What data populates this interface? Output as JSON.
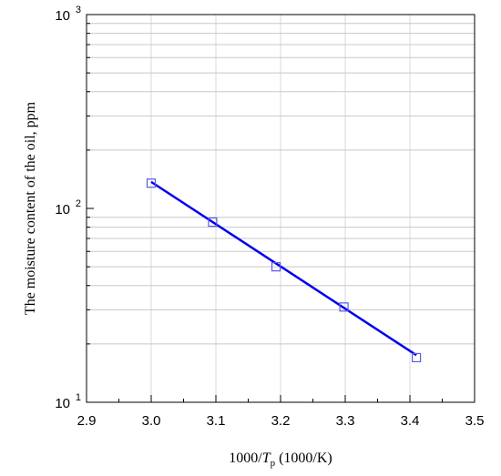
{
  "chart_data": {
    "type": "line",
    "title": "",
    "xlabel": {
      "prefix": "1000/",
      "var": "T",
      "sub": "p",
      "suffix": " (1000/K)"
    },
    "ylabel": "The moisture content of the oil, ppm",
    "xlim": [
      2.9,
      3.5
    ],
    "ylim": [
      10,
      1000
    ],
    "yscale": "log",
    "grid": true,
    "xticks": [
      2.9,
      3.0,
      3.1,
      3.2,
      3.3,
      3.4,
      3.5
    ],
    "xtick_labels": [
      "2.9",
      "3.0",
      "3.1",
      "3.2",
      "3.3",
      "3.4",
      "3.5"
    ],
    "yticks": [
      {
        "value": 10,
        "base": "10",
        "exp": "1"
      },
      {
        "value": 100,
        "base": "10",
        "exp": "2"
      },
      {
        "value": 1000,
        "base": "10",
        "exp": "3"
      }
    ],
    "series": [
      {
        "type": "scatter",
        "marker": "square",
        "color": "#5a5ae6",
        "x": [
          3.0,
          3.095,
          3.193,
          3.298,
          3.41
        ],
        "y": [
          135,
          85,
          50,
          31,
          17
        ]
      },
      {
        "type": "line",
        "color": "#0000ee",
        "x": [
          3.0,
          3.41
        ],
        "y": [
          137,
          17.5
        ]
      }
    ]
  }
}
